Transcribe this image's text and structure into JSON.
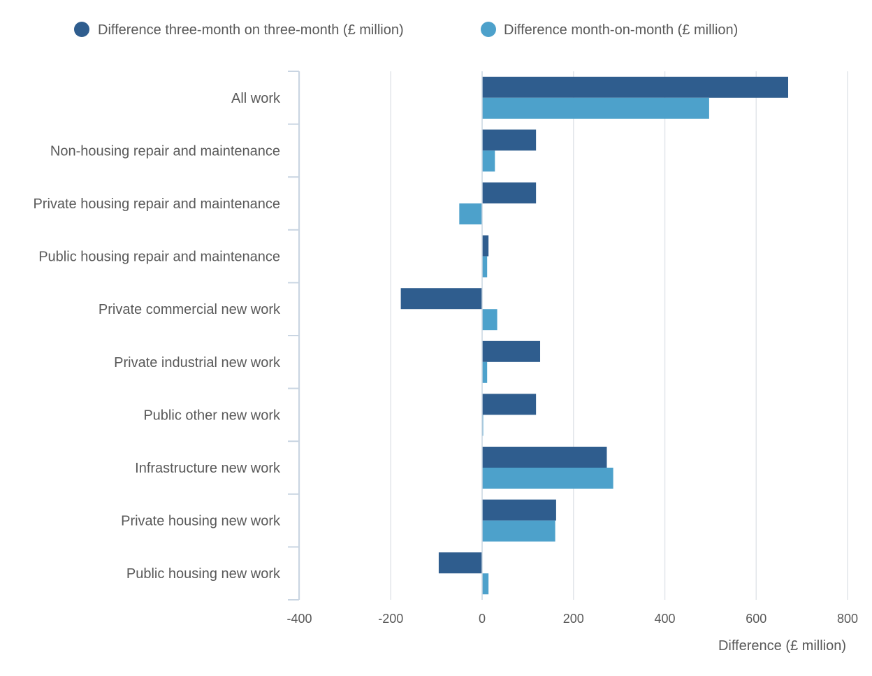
{
  "chart_data": {
    "type": "bar",
    "orientation": "horizontal",
    "title": "",
    "xlabel": "Difference (£ million)",
    "ylabel": "",
    "xlim": [
      -400,
      800
    ],
    "xticks": [
      -400,
      -200,
      0,
      200,
      400,
      600,
      800
    ],
    "xtick_labels": [
      "-400",
      "-200",
      "0",
      "200",
      "400",
      "600",
      "800"
    ],
    "grid": "vertical",
    "legend_position": "top",
    "categories": [
      "All work",
      "Non-housing repair and maintenance",
      "Private housing repair and maintenance",
      "Public housing repair and maintenance",
      "Private commercial new work",
      "Private industrial new work",
      "Public other new work",
      "Infrastructure new work",
      "Private housing new work",
      "Public housing new work"
    ],
    "series": [
      {
        "name": "Difference three-month on three-month (£ million)",
        "color": "#2f5d8e",
        "values": [
          670,
          118,
          118,
          14,
          -178,
          127,
          118,
          273,
          162,
          -95
        ]
      },
      {
        "name": "Difference month-on-month (£ million)",
        "color": "#4da1cb",
        "values": [
          497,
          28,
          -50,
          11,
          33,
          11,
          1,
          287,
          160,
          14
        ]
      }
    ]
  },
  "colors": {
    "grid": "#e2e6ea",
    "axis": "#c9d5e2",
    "text": "#595959"
  }
}
